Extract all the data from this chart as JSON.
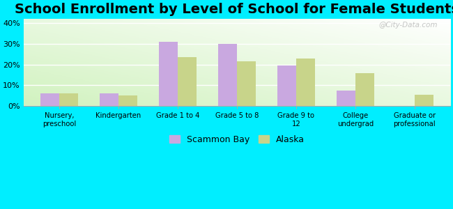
{
  "title": "School Enrollment by Level of School for Female Students",
  "categories": [
    "Nursery,\npreschool",
    "Kindergarten",
    "Grade 1 to 4",
    "Grade 5 to 8",
    "Grade 9 to\n12",
    "College\nundergrad",
    "Graduate or\nprofessional"
  ],
  "scammon_bay": [
    6.0,
    6.0,
    31.0,
    30.0,
    19.5,
    7.5,
    0.0
  ],
  "alaska": [
    6.0,
    5.0,
    23.5,
    21.5,
    23.0,
    16.0,
    5.5
  ],
  "scammon_color": "#c9a8e0",
  "alaska_color": "#c8d48a",
  "background_color": "#00eeff",
  "ylabel_values": [
    "0%",
    "10%",
    "20%",
    "30%",
    "40%"
  ],
  "yticks": [
    0,
    10,
    20,
    30,
    40
  ],
  "ylim": [
    0,
    42
  ],
  "legend_labels": [
    "Scammon Bay",
    "Alaska"
  ],
  "title_fontsize": 14,
  "watermark": "@City-Data.com",
  "bar_width": 0.32
}
